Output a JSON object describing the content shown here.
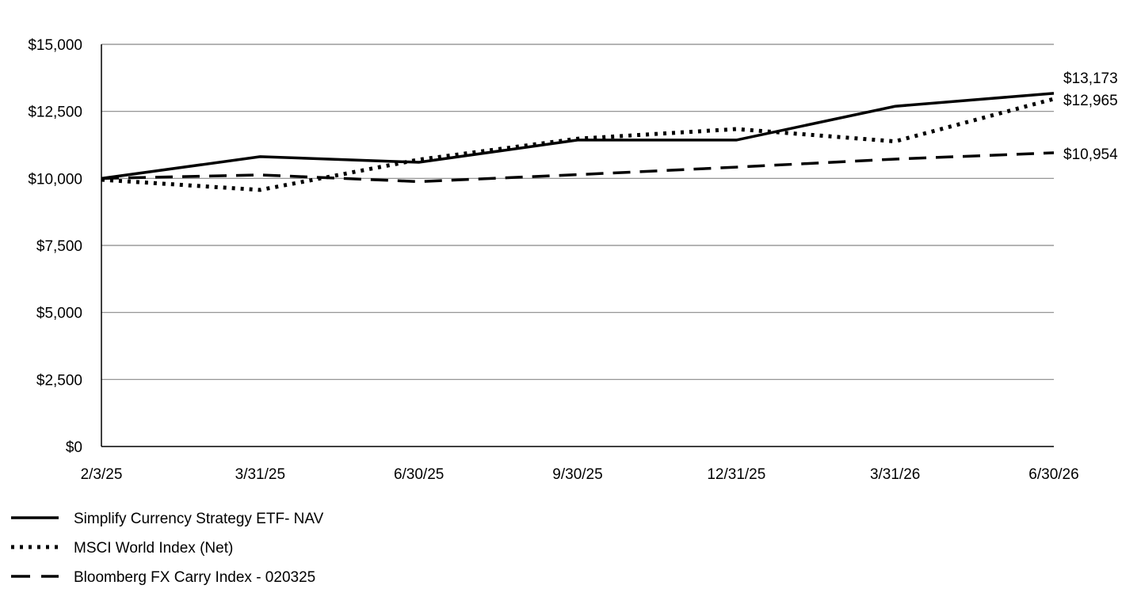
{
  "chart_data": {
    "type": "line",
    "x": [
      "2/3/25",
      "3/31/25",
      "6/30/25",
      "9/30/25",
      "12/31/25",
      "3/31/26",
      "6/30/26"
    ],
    "y_ticks": [
      "$0",
      "$2,500",
      "$5,000",
      "$7,500",
      "$10,000",
      "$12,500",
      "$15,000"
    ],
    "ylim": [
      0,
      15000
    ],
    "grid": true,
    "legend_position": "bottom-left",
    "series": [
      {
        "name": "Simplify Currency Strategy ETF- NAV",
        "style": "solid",
        "values": [
          10000,
          10810,
          10600,
          11430,
          11430,
          12690,
          13173
        ],
        "end_label": "$13,173"
      },
      {
        "name": "MSCI World Index (Net)",
        "style": "dotted",
        "values": [
          9950,
          9570,
          10700,
          11480,
          11840,
          11380,
          12965
        ],
        "end_label": "$12,965"
      },
      {
        "name": "Bloomberg FX Carry Index - 020325",
        "style": "dashed",
        "values": [
          10000,
          10130,
          9880,
          10140,
          10420,
          10720,
          10954
        ],
        "end_label": "$10,954"
      }
    ],
    "colors": {
      "line": "#000000",
      "grid": "#888888",
      "axis": "#000000"
    }
  }
}
